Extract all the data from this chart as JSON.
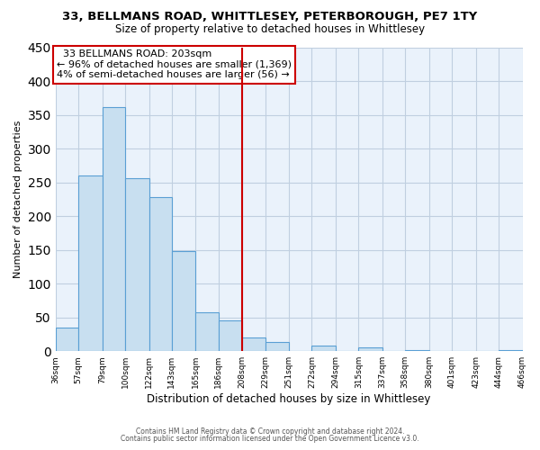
{
  "title": "33, BELLMANS ROAD, WHITTLESEY, PETERBOROUGH, PE7 1TY",
  "subtitle": "Size of property relative to detached houses in Whittlesey",
  "xlabel": "Distribution of detached houses by size in Whittlesey",
  "ylabel": "Number of detached properties",
  "bar_color": "#c8dff0",
  "bar_edge_color": "#5a9fd4",
  "plot_bg_color": "#eaf2fb",
  "bin_edges": [
    36,
    57,
    79,
    100,
    122,
    143,
    165,
    186,
    208,
    229,
    251,
    272,
    294,
    315,
    337,
    358,
    380,
    401,
    423,
    444,
    466
  ],
  "bar_heights": [
    35,
    260,
    362,
    256,
    228,
    148,
    58,
    46,
    20,
    13,
    0,
    8,
    0,
    6,
    0,
    2,
    0,
    0,
    0,
    2
  ],
  "tick_labels": [
    "36sqm",
    "57sqm",
    "79sqm",
    "100sqm",
    "122sqm",
    "143sqm",
    "165sqm",
    "186sqm",
    "208sqm",
    "229sqm",
    "251sqm",
    "272sqm",
    "294sqm",
    "315sqm",
    "337sqm",
    "358sqm",
    "380sqm",
    "401sqm",
    "423sqm",
    "444sqm",
    "466sqm"
  ],
  "vline_x": 208,
  "vline_color": "#cc0000",
  "ylim": [
    0,
    450
  ],
  "annotation_title": "33 BELLMANS ROAD: 203sqm",
  "annotation_line1": "← 96% of detached houses are smaller (1,369)",
  "annotation_line2": "4% of semi-detached houses are larger (56) →",
  "annotation_box_color": "#ffffff",
  "annotation_box_edge": "#cc0000",
  "footer1": "Contains HM Land Registry data © Crown copyright and database right 2024.",
  "footer2": "Contains public sector information licensed under the Open Government Licence v3.0.",
  "background_color": "#ffffff",
  "grid_color": "#c0cfe0"
}
